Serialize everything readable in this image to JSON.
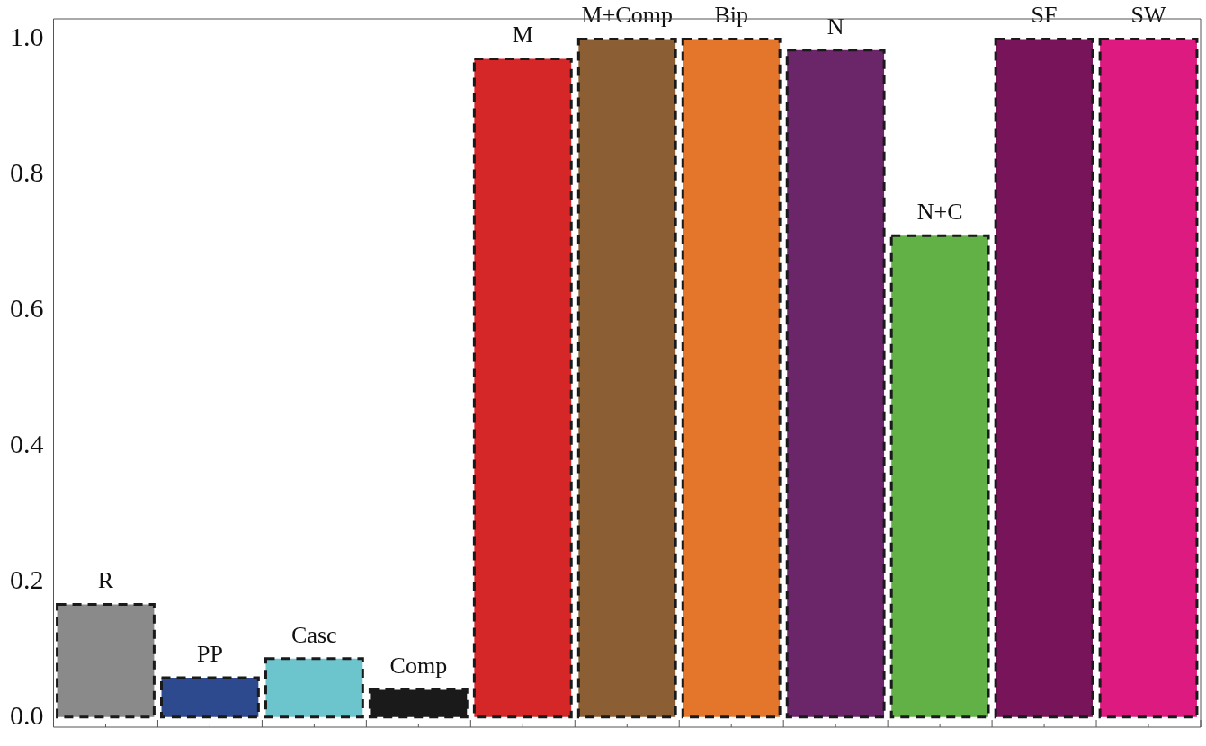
{
  "chart_data": {
    "type": "bar",
    "categories": [
      "R",
      "PP",
      "Casc",
      "Comp",
      "M",
      "M+Comp",
      "Bip",
      "N",
      "N+C",
      "SF",
      "SW"
    ],
    "values": [
      0.166,
      0.058,
      0.086,
      0.04,
      0.971,
      1.0,
      1.0,
      0.984,
      0.71,
      1.0,
      1.0
    ],
    "colors": [
      "#8a8a8a",
      "#2e4a8e",
      "#6cc4cc",
      "#1a1a1a",
      "#d62728",
      "#8b5e34",
      "#e3762b",
      "#6b2569",
      "#62b146",
      "#78145a",
      "#dc1a7f"
    ],
    "ylim": [
      -0.015,
      1.03
    ],
    "yticks": [
      {
        "value": 0,
        "label": "0.0"
      },
      {
        "value": 0.2,
        "label": "0.2"
      },
      {
        "value": 0.4,
        "label": "0.4"
      },
      {
        "value": 0.6,
        "label": "0.6"
      },
      {
        "value": 0.8,
        "label": "0.8"
      },
      {
        "value": 1,
        "label": "1.0"
      }
    ],
    "tick_labels": "y",
    "grid": false,
    "legend": false,
    "line_style": "dashed"
  }
}
